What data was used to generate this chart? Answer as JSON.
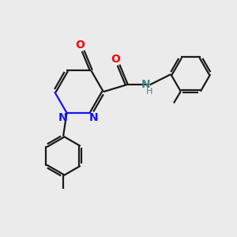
{
  "background_color": "#ebebeb",
  "bond_color": "#1a1a1a",
  "n_color": "#1414ff",
  "o_color": "#ff0000",
  "nh_color": "#4a8080",
  "line_width": 1.6,
  "figsize": [
    3.0,
    3.0
  ],
  "dpi": 100,
  "xlim": [
    0,
    10
  ],
  "ylim": [
    0,
    10
  ]
}
